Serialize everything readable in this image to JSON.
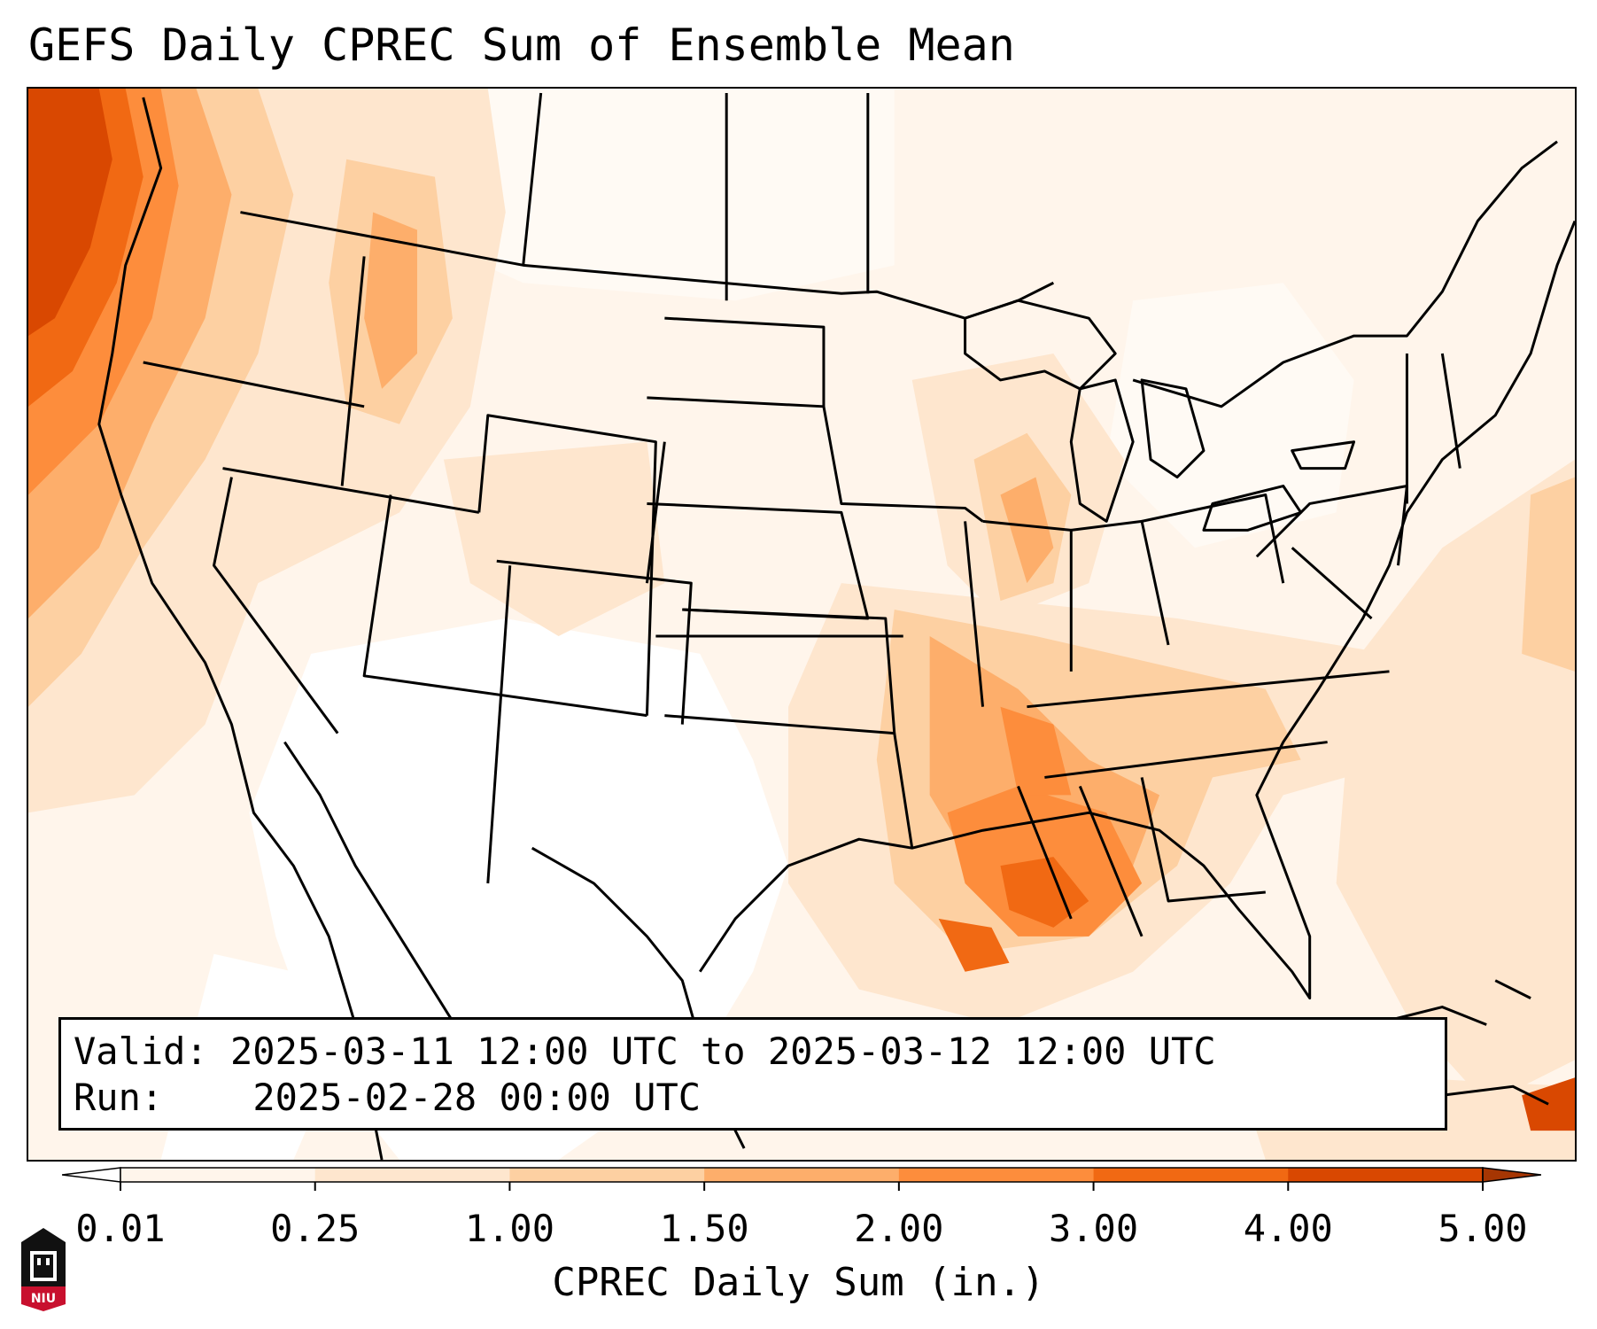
{
  "title": "GEFS Daily CPREC Sum of Ensemble Mean",
  "info": {
    "valid_label": "Valid:",
    "valid_value": "2025-03-11 12:00 UTC to 2025-03-12 12:00 UTC",
    "run_label": "Run:",
    "run_value": "2025-02-28 00:00 UTC"
  },
  "colorbar": {
    "label": "CPREC Daily Sum (in.)",
    "ticks": [
      "0.01",
      "0.25",
      "1.00",
      "1.50",
      "2.00",
      "3.00",
      "4.00",
      "5.00"
    ],
    "colors": [
      "#fff5eb",
      "#fee6ce",
      "#fdd0a2",
      "#fdae6b",
      "#fd8d3c",
      "#f16913",
      "#d94801",
      "#a63603"
    ],
    "extend_low_color": "#ffffff",
    "extend_high_color": "#a63603"
  },
  "logo": {
    "text": "NIU",
    "colors": {
      "primary": "#c8102e",
      "secondary": "#000000"
    }
  }
}
